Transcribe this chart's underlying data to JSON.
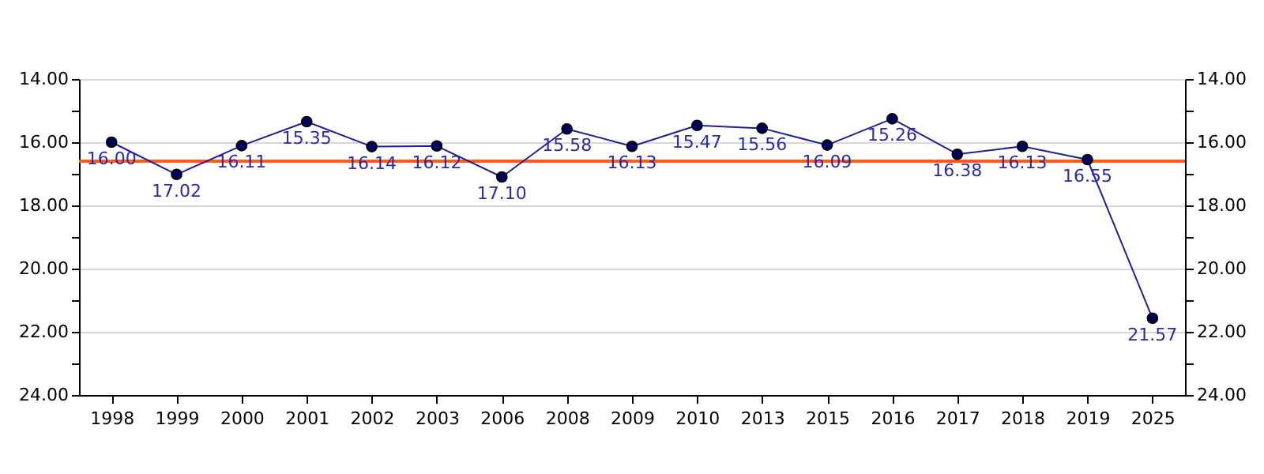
{
  "chart_data": {
    "type": "line",
    "categories": [
      "1998",
      "1999",
      "2000",
      "2001",
      "2002",
      "2003",
      "2006",
      "2008",
      "2009",
      "2010",
      "2013",
      "2015",
      "2016",
      "2017",
      "2018",
      "2019",
      "2025"
    ],
    "series": [
      {
        "color": "#1f1f9e",
        "values": [
          16.0,
          17.02,
          16.11,
          15.35,
          16.14,
          16.12,
          17.1,
          15.58,
          16.13,
          15.47,
          15.56,
          16.09,
          15.26,
          16.38,
          16.13,
          16.55,
          21.57
        ],
        "value_labels": [
          "16.00",
          "17.02",
          "16.11",
          "15.35",
          "16.14",
          "16.12",
          "17.10",
          "15.58",
          "16.13",
          "15.47",
          "15.56",
          "16.09",
          "15.26",
          "16.38",
          "16.13",
          "16.55",
          "21.57"
        ]
      }
    ],
    "ylim": [
      24,
      14
    ],
    "yticks": [
      {
        "value": 14,
        "label": "14.00"
      },
      {
        "value": 15,
        "label": null
      },
      {
        "value": 16,
        "label": "16.00"
      },
      {
        "value": 17,
        "label": null
      },
      {
        "value": 18,
        "label": "18.00"
      },
      {
        "value": 19,
        "label": null
      },
      {
        "value": 20,
        "label": "20.00"
      },
      {
        "value": 21,
        "label": null
      },
      {
        "value": 22,
        "label": "22.00"
      },
      {
        "value": 23,
        "label": null
      },
      {
        "value": 24,
        "label": "24.00"
      }
    ],
    "y2lim": [
      24,
      14
    ],
    "y2ticks": [
      {
        "value": 14,
        "label": "14.00"
      },
      {
        "value": 15,
        "label": null
      },
      {
        "value": 16,
        "label": "16.00"
      },
      {
        "value": 17,
        "label": null
      },
      {
        "value": 18,
        "label": "18.00"
      },
      {
        "value": 19,
        "label": null
      },
      {
        "value": 20,
        "label": "20.00"
      },
      {
        "value": 21,
        "label": null
      },
      {
        "value": 22,
        "label": "22.00"
      },
      {
        "value": 23,
        "label": null
      },
      {
        "value": 24,
        "label": "24.00"
      }
    ],
    "ref_lines": [
      {
        "axis": "y",
        "value": 16.6,
        "color": "#ff5a1a"
      }
    ],
    "grid": "y",
    "marker": "circle",
    "line_style": "solid"
  }
}
